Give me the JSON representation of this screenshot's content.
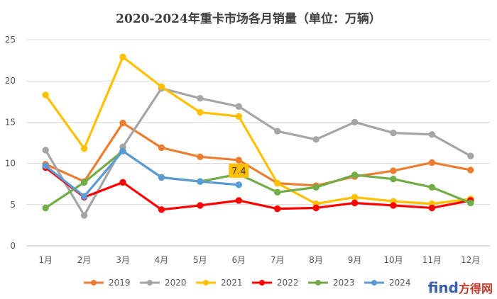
{
  "chart_data": {
    "type": "line",
    "title": "2020-2024年重卡市场各月销量（单位：万辆）",
    "xlabel": "",
    "ylabel": "",
    "categories": [
      "1月",
      "2月",
      "3月",
      "4月",
      "5月",
      "6月",
      "7月",
      "8月",
      "9月",
      "10月",
      "11月",
      "12月"
    ],
    "ylim": [
      0,
      25
    ],
    "yticks": [
      0,
      5,
      10,
      15,
      20,
      25
    ],
    "grid": true,
    "legend": "bottom",
    "series": [
      {
        "name": "2019",
        "color": "#ED7D31",
        "values": [
          9.9,
          7.8,
          14.9,
          11.9,
          10.8,
          10.4,
          7.6,
          7.3,
          8.4,
          9.1,
          10.1,
          9.2
        ]
      },
      {
        "name": "2020",
        "color": "#A5A5A5",
        "values": [
          11.6,
          3.7,
          12.0,
          19.1,
          17.9,
          16.9,
          13.9,
          12.9,
          15.0,
          13.7,
          13.5,
          10.9
        ]
      },
      {
        "name": "2021",
        "color": "#FFC000",
        "values": [
          18.3,
          11.8,
          22.9,
          19.3,
          16.2,
          15.7,
          7.6,
          5.1,
          5.9,
          5.4,
          5.1,
          5.7
        ]
      },
      {
        "name": "2022",
        "color": "#FF0000",
        "values": [
          9.5,
          5.9,
          7.7,
          4.4,
          4.9,
          5.5,
          4.5,
          4.6,
          5.2,
          4.9,
          4.6,
          5.5
        ]
      },
      {
        "name": "2023",
        "color": "#70AD47",
        "values": [
          4.6,
          7.7,
          11.5,
          8.3,
          7.8,
          8.7,
          6.5,
          7.1,
          8.6,
          8.1,
          7.1,
          5.2
        ]
      },
      {
        "name": "2024",
        "color": "#5B9BD5",
        "values": [
          9.7,
          6.0,
          11.5,
          8.3,
          7.8,
          7.4,
          null,
          null,
          null,
          null,
          null,
          null
        ]
      }
    ],
    "annotations": [
      {
        "series": "2024",
        "category": "6月",
        "value": 7.4,
        "text": "7.4",
        "background": "#FFC000"
      }
    ]
  },
  "watermark": {
    "main": "find",
    "sub": "方得网"
  }
}
